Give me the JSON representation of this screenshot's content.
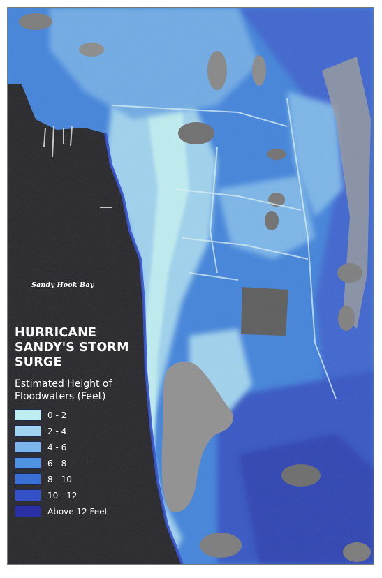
{
  "map": {
    "place_label": "Sandy Hook Bay"
  },
  "legend": {
    "title": "HURRICANE SANDY'S STORM SURGE",
    "subtitle": "Estimated Height of Floodwaters (Feet)",
    "items": [
      {
        "label": "0 - 2",
        "color": "#bfeef2"
      },
      {
        "label": "2 - 4",
        "color": "#9fd3ef"
      },
      {
        "label": "4 - 6",
        "color": "#7ab6ea"
      },
      {
        "label": "6 - 8",
        "color": "#4e93e0"
      },
      {
        "label": "8 - 10",
        "color": "#3a6fd6"
      },
      {
        "label": "10 - 12",
        "color": "#3551c7"
      },
      {
        "label": "Above 12 Feet",
        "color": "#2a2fa6"
      }
    ]
  }
}
